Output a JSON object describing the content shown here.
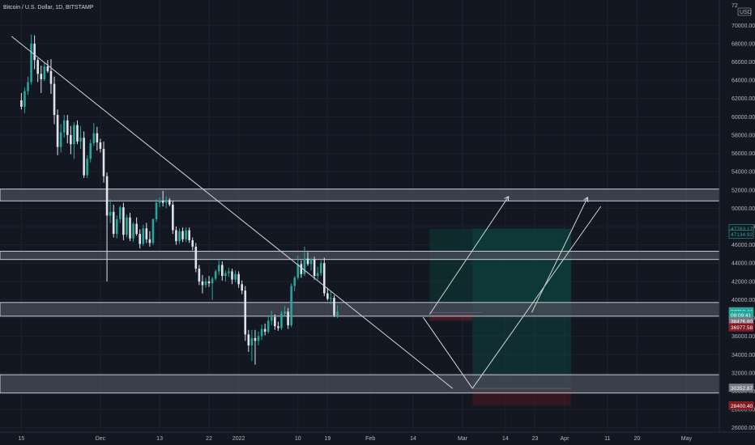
{
  "header": {
    "title": "Bitcoin / U.S. Dollar, 1D, BITSTAMP",
    "currency": "USD",
    "top_price_fragment": "72"
  },
  "chart_data": {
    "type": "candlestick",
    "title": "Bitcoin / U.S. Dollar, 1D, BITSTAMP",
    "ylim": [
      24000,
      72000
    ],
    "y_ticks": [
      70000,
      68000,
      66000,
      64000,
      62000,
      60000,
      58000,
      56000,
      54000,
      52000,
      50000,
      48000,
      46000,
      44000,
      42000,
      40000,
      38000,
      36000,
      34000,
      32000,
      30000,
      28000,
      26000
    ],
    "x_ticks": [
      "15",
      "Dec",
      "13",
      "22",
      "2022",
      "10",
      "19",
      "Feb",
      "14",
      "Mar",
      "14",
      "23",
      "Apr",
      "11",
      "20",
      "May"
    ],
    "x_tick_days": [
      0,
      24,
      42,
      57,
      66,
      84,
      93,
      106,
      119,
      134,
      147,
      156,
      165,
      178,
      187,
      202
    ],
    "day_range": [
      -6,
      212
    ],
    "grid": true,
    "colors": {
      "background": "#131722",
      "up": "#26a69a",
      "down": "#e0e3eb",
      "zone_fill": "#4a4e59",
      "zone_border": "#c8cbd2",
      "trendline": "#d1d4dc",
      "target_fill": "#0d3a36",
      "stop_fill": "#3d141a"
    },
    "candles": [
      {
        "o": 61800,
        "h": 62600,
        "l": 60800,
        "c": 61100
      },
      {
        "o": 61100,
        "h": 63200,
        "l": 60400,
        "c": 62800
      },
      {
        "o": 62800,
        "h": 64400,
        "l": 62400,
        "c": 63800
      },
      {
        "o": 63800,
        "h": 69000,
        "l": 63500,
        "c": 68000
      },
      {
        "o": 68000,
        "h": 68900,
        "l": 65200,
        "c": 66200
      },
      {
        "o": 66200,
        "h": 66400,
        "l": 63800,
        "c": 64700
      },
      {
        "o": 64700,
        "h": 65600,
        "l": 62600,
        "c": 64100
      },
      {
        "o": 64100,
        "h": 65900,
        "l": 63900,
        "c": 65500
      },
      {
        "o": 65500,
        "h": 66200,
        "l": 64800,
        "c": 65000
      },
      {
        "o": 65000,
        "h": 66300,
        "l": 62500,
        "c": 63600
      },
      {
        "o": 63600,
        "h": 64400,
        "l": 59200,
        "c": 60200
      },
      {
        "o": 60200,
        "h": 60800,
        "l": 55800,
        "c": 56700
      },
      {
        "o": 56700,
        "h": 59200,
        "l": 56100,
        "c": 58300
      },
      {
        "o": 58300,
        "h": 60200,
        "l": 57700,
        "c": 59600
      },
      {
        "o": 59600,
        "h": 60200,
        "l": 57100,
        "c": 58000
      },
      {
        "o": 58000,
        "h": 59000,
        "l": 55900,
        "c": 57000
      },
      {
        "o": 57000,
        "h": 59400,
        "l": 55400,
        "c": 59100
      },
      {
        "o": 59100,
        "h": 59600,
        "l": 57000,
        "c": 57300
      },
      {
        "o": 57300,
        "h": 59000,
        "l": 56500,
        "c": 57700
      },
      {
        "o": 57700,
        "h": 58400,
        "l": 53300,
        "c": 53600
      },
      {
        "o": 53600,
        "h": 55800,
        "l": 53300,
        "c": 55400
      },
      {
        "o": 55400,
        "h": 57500,
        "l": 55000,
        "c": 57100
      },
      {
        "o": 57100,
        "h": 59300,
        "l": 56800,
        "c": 58200
      },
      {
        "o": 58200,
        "h": 58900,
        "l": 56300,
        "c": 57200
      },
      {
        "o": 57200,
        "h": 57600,
        "l": 56100,
        "c": 56500
      },
      {
        "o": 56500,
        "h": 57300,
        "l": 52800,
        "c": 53500
      },
      {
        "o": 53500,
        "h": 53900,
        "l": 42000,
        "c": 49200
      },
      {
        "o": 49200,
        "h": 51000,
        "l": 48400,
        "c": 49600
      },
      {
        "o": 49600,
        "h": 50400,
        "l": 46800,
        "c": 47200
      },
      {
        "o": 47200,
        "h": 49200,
        "l": 46700,
        "c": 48800
      },
      {
        "o": 48800,
        "h": 50300,
        "l": 48400,
        "c": 50100
      },
      {
        "o": 50100,
        "h": 50600,
        "l": 46500,
        "c": 47100
      },
      {
        "o": 47100,
        "h": 49300,
        "l": 46800,
        "c": 49000
      },
      {
        "o": 49000,
        "h": 49500,
        "l": 46400,
        "c": 46700
      },
      {
        "o": 46700,
        "h": 48500,
        "l": 46300,
        "c": 48300
      },
      {
        "o": 48300,
        "h": 49000,
        "l": 47000,
        "c": 47200
      },
      {
        "o": 47200,
        "h": 47700,
        "l": 45600,
        "c": 46100
      },
      {
        "o": 46100,
        "h": 48200,
        "l": 45900,
        "c": 47800
      },
      {
        "o": 47800,
        "h": 48400,
        "l": 46200,
        "c": 46600
      },
      {
        "o": 46600,
        "h": 47500,
        "l": 45800,
        "c": 46200
      },
      {
        "o": 46200,
        "h": 48900,
        "l": 46000,
        "c": 48800
      },
      {
        "o": 48800,
        "h": 51000,
        "l": 48500,
        "c": 50600
      },
      {
        "o": 50600,
        "h": 51200,
        "l": 50100,
        "c": 50800
      },
      {
        "o": 50800,
        "h": 51900,
        "l": 50200,
        "c": 50600
      },
      {
        "o": 50600,
        "h": 51300,
        "l": 50000,
        "c": 50900
      },
      {
        "o": 50900,
        "h": 51100,
        "l": 50200,
        "c": 50400
      },
      {
        "o": 50400,
        "h": 50800,
        "l": 47200,
        "c": 47600
      },
      {
        "o": 47600,
        "h": 48000,
        "l": 46000,
        "c": 46400
      },
      {
        "o": 46400,
        "h": 47800,
        "l": 46100,
        "c": 47500
      },
      {
        "o": 47500,
        "h": 47900,
        "l": 46300,
        "c": 46600
      },
      {
        "o": 46600,
        "h": 47900,
        "l": 46300,
        "c": 47600
      },
      {
        "o": 47600,
        "h": 47900,
        "l": 46200,
        "c": 46500
      },
      {
        "o": 46500,
        "h": 46800,
        "l": 45400,
        "c": 45800
      },
      {
        "o": 45800,
        "h": 46200,
        "l": 43000,
        "c": 43400
      },
      {
        "o": 43400,
        "h": 43800,
        "l": 41600,
        "c": 42000
      },
      {
        "o": 42000,
        "h": 42700,
        "l": 40700,
        "c": 41600
      },
      {
        "o": 41600,
        "h": 42400,
        "l": 41300,
        "c": 42000
      },
      {
        "o": 42000,
        "h": 42600,
        "l": 41400,
        "c": 41800
      },
      {
        "o": 41800,
        "h": 42500,
        "l": 40000,
        "c": 42300
      },
      {
        "o": 42300,
        "h": 43300,
        "l": 42100,
        "c": 43100
      },
      {
        "o": 43100,
        "h": 44300,
        "l": 42700,
        "c": 43800
      },
      {
        "o": 43800,
        "h": 44200,
        "l": 42100,
        "c": 42600
      },
      {
        "o": 42600,
        "h": 43200,
        "l": 42000,
        "c": 42900
      },
      {
        "o": 42900,
        "h": 43500,
        "l": 42500,
        "c": 43100
      },
      {
        "o": 43100,
        "h": 43400,
        "l": 41700,
        "c": 42200
      },
      {
        "o": 42200,
        "h": 43200,
        "l": 41900,
        "c": 42800
      },
      {
        "o": 42800,
        "h": 43100,
        "l": 41300,
        "c": 41700
      },
      {
        "o": 41700,
        "h": 42100,
        "l": 40600,
        "c": 41000
      },
      {
        "o": 41000,
        "h": 41500,
        "l": 35500,
        "c": 36200
      },
      {
        "o": 36200,
        "h": 36700,
        "l": 34300,
        "c": 35000
      },
      {
        "o": 35000,
        "h": 36700,
        "l": 33300,
        "c": 35800
      },
      {
        "o": 35800,
        "h": 36700,
        "l": 32900,
        "c": 35500
      },
      {
        "o": 35500,
        "h": 36500,
        "l": 35000,
        "c": 36000
      },
      {
        "o": 36000,
        "h": 37300,
        "l": 35600,
        "c": 36800
      },
      {
        "o": 36800,
        "h": 37400,
        "l": 36100,
        "c": 36500
      },
      {
        "o": 36500,
        "h": 38200,
        "l": 36300,
        "c": 37700
      },
      {
        "o": 37700,
        "h": 38800,
        "l": 37200,
        "c": 38100
      },
      {
        "o": 38100,
        "h": 38400,
        "l": 36700,
        "c": 37100
      },
      {
        "o": 37100,
        "h": 37600,
        "l": 36600,
        "c": 36900
      },
      {
        "o": 36900,
        "h": 38800,
        "l": 36700,
        "c": 38500
      },
      {
        "o": 38500,
        "h": 39300,
        "l": 38200,
        "c": 38700
      },
      {
        "o": 38700,
        "h": 39100,
        "l": 36800,
        "c": 37200
      },
      {
        "o": 37200,
        "h": 41800,
        "l": 37000,
        "c": 41500
      },
      {
        "o": 41500,
        "h": 42600,
        "l": 40900,
        "c": 42400
      },
      {
        "o": 42400,
        "h": 44800,
        "l": 42200,
        "c": 43900
      },
      {
        "o": 43900,
        "h": 44300,
        "l": 42400,
        "c": 42800
      },
      {
        "o": 42800,
        "h": 45800,
        "l": 42600,
        "c": 44500
      },
      {
        "o": 44500,
        "h": 45200,
        "l": 43700,
        "c": 43900
      },
      {
        "o": 43900,
        "h": 44600,
        "l": 43200,
        "c": 44400
      },
      {
        "o": 44400,
        "h": 44700,
        "l": 42200,
        "c": 42600
      },
      {
        "o": 42600,
        "h": 43600,
        "l": 42200,
        "c": 42900
      },
      {
        "o": 42900,
        "h": 44300,
        "l": 42600,
        "c": 44000
      },
      {
        "o": 44000,
        "h": 44600,
        "l": 40400,
        "c": 40700
      },
      {
        "o": 40700,
        "h": 41300,
        "l": 39900,
        "c": 40100
      },
      {
        "o": 40100,
        "h": 40900,
        "l": 39500,
        "c": 40200
      },
      {
        "o": 40200,
        "h": 40500,
        "l": 38100,
        "c": 38300
      },
      {
        "o": 38300,
        "h": 39400,
        "l": 38000,
        "c": 38700
      }
    ],
    "zones": [
      {
        "top": 52100,
        "bottom": 50800
      },
      {
        "top": 45300,
        "bottom": 44400
      },
      {
        "top": 39700,
        "bottom": 38200
      },
      {
        "top": 31800,
        "bottom": 29800
      }
    ],
    "trendlines": [
      {
        "from": {
          "day": -3,
          "price": 68800
        },
        "to": {
          "day": 131,
          "price": 30300
        }
      },
      {
        "from": {
          "day": 122,
          "price": 38100
        },
        "to": {
          "day": 137,
          "price": 30300
        }
      },
      {
        "from": {
          "day": 137,
          "price": 30300
        },
        "to": {
          "day": 176,
          "price": 50200
        }
      }
    ],
    "arrows": [
      {
        "from": {
          "day": 124,
          "price": 38400
        },
        "to": {
          "day": 148,
          "price": 51300
        }
      },
      {
        "from": {
          "day": 155,
          "price": 38600
        },
        "to": {
          "day": 172,
          "price": 51200
        }
      }
    ],
    "position": {
      "start_day": 124,
      "split_day": 137,
      "end_day": 167,
      "entry": 38600,
      "target": 47763.17,
      "stop": 37700,
      "second_stop": 30300,
      "second_stop_low": 28400
    },
    "price_tags": [
      {
        "value": "47763.17",
        "price": 47763.17,
        "style": "teal-outline"
      },
      {
        "value": "47134.92",
        "price": 47134.92,
        "style": "teal-outline"
      },
      {
        "value": "38710.44",
        "price": 38710.44,
        "style": "teal-solid"
      },
      {
        "value": "08:09:41",
        "price": 38310,
        "style": "teal-solid"
      },
      {
        "value": "38476.80",
        "price": 37650,
        "style": "gray"
      },
      {
        "value": "36977.58",
        "price": 36977.58,
        "style": "red"
      },
      {
        "value": "30352.87",
        "price": 30352.87,
        "style": "gray"
      },
      {
        "value": "28400.40",
        "price": 28400.4,
        "style": "red"
      }
    ]
  }
}
